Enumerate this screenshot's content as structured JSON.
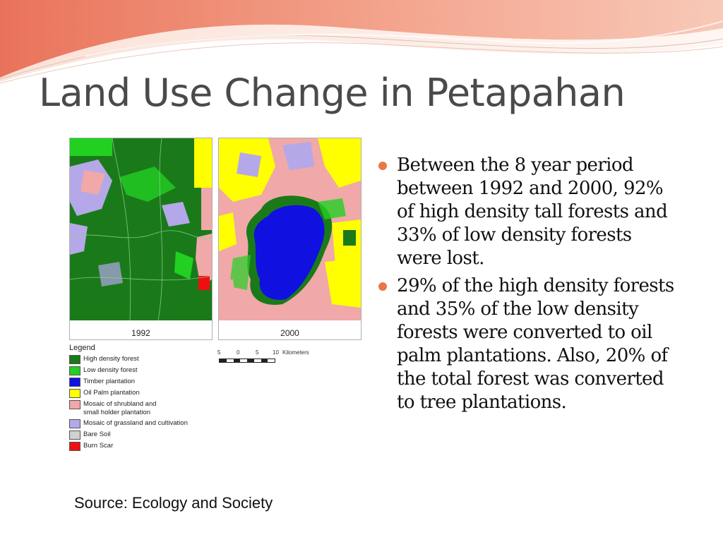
{
  "slide": {
    "title": "Land Use Change in Petapahan",
    "source": "Source: Ecology and Society",
    "bullets": [
      "Between the 8 year period between 1992 and 2000, 92% of high density tall forests and 33% of low density forests were lost.",
      "29% of the high density forests and 35% of the low density forests were converted  to oil palm plantations.  Also, 20% of the total forest was converted to tree plantations."
    ],
    "accent_color": "#e8784a"
  },
  "figure": {
    "map_1992_label": "1992",
    "map_2000_label": "2000",
    "legend_title": "Legend",
    "legend": [
      {
        "label": "High density forest",
        "color": "#1a7a1a"
      },
      {
        "label": "Low density forest",
        "color": "#22d022"
      },
      {
        "label": "Timber plantation",
        "color": "#1010e0"
      },
      {
        "label": "Oil Palm plantation",
        "color": "#ffff00"
      },
      {
        "label": "Mosaic of shrubland and\nsmall holder plantation",
        "color": "#f0a8a8"
      },
      {
        "label": "Mosaic of grassland and cultivation",
        "color": "#b4a8e8"
      },
      {
        "label": "Bare Soil",
        "color": "#d0d0d0"
      },
      {
        "label": "Burn Scar",
        "color": "#ee1010"
      }
    ],
    "scale": {
      "ticks": [
        "5",
        "0",
        "5",
        "10"
      ],
      "unit": "Kilometers"
    }
  }
}
